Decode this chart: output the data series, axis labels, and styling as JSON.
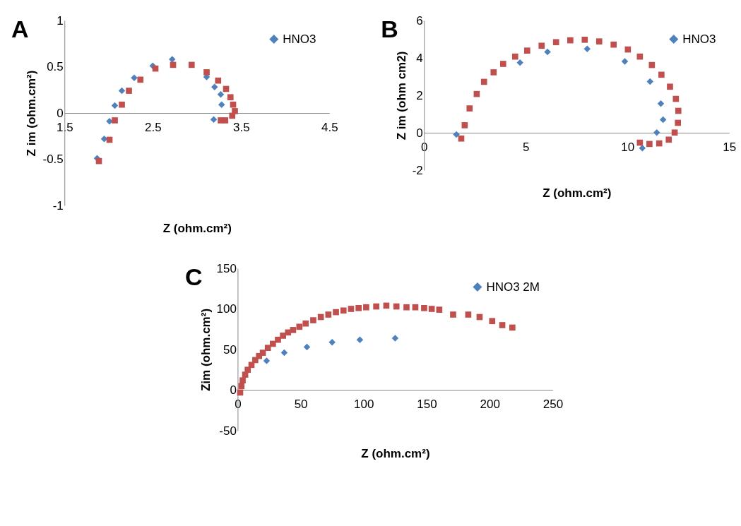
{
  "chart_data": [
    {
      "type": "scatter",
      "title": "A",
      "xlabel": "Z (ohm.cm²)",
      "ylabel": "Z im (ohm.cm²)",
      "xlim": [
        1.5,
        4.5
      ],
      "xticks": [
        1.5,
        2.5,
        3.5,
        4.5
      ],
      "ylim": [
        -1,
        1
      ],
      "yticks": [
        -1,
        -0.5,
        0,
        0.5,
        1
      ],
      "legend": "top right",
      "series": [
        {
          "name": "HNO3",
          "color": "#4f81bd",
          "marker": "diamond",
          "x": [
            1.87,
            1.95,
            2.01,
            2.07,
            2.15,
            2.29,
            2.5,
            2.72,
            3.11,
            3.2,
            3.27,
            3.28,
            3.19
          ],
          "values": [
            -0.49,
            -0.28,
            -0.09,
            0.08,
            0.24,
            0.38,
            0.51,
            0.58,
            0.39,
            0.28,
            0.2,
            0.09,
            -0.07
          ]
        },
        {
          "color": "#c0504d",
          "marker": "square",
          "x": [
            1.89,
            2.01,
            2.07,
            2.15,
            2.23,
            2.36,
            2.53,
            2.73,
            2.94,
            3.11,
            3.24,
            3.33,
            3.38,
            3.41,
            3.43,
            3.4,
            3.32,
            3.27
          ],
          "values": [
            -0.52,
            -0.29,
            -0.08,
            0.09,
            0.24,
            0.36,
            0.48,
            0.52,
            0.52,
            0.44,
            0.35,
            0.26,
            0.17,
            0.09,
            0.02,
            -0.03,
            -0.08,
            -0.08
          ]
        }
      ]
    },
    {
      "type": "scatter",
      "title": "B",
      "xlabel": "Z (ohm.cm²)",
      "ylabel": "Z im (ohm cm2)",
      "xlim": [
        0,
        15
      ],
      "xticks": [
        0,
        5,
        10,
        15
      ],
      "ylim": [
        -2,
        6
      ],
      "yticks": [
        -2,
        0,
        2,
        4,
        6
      ],
      "legend": "top right",
      "series": [
        {
          "name": "HNO3",
          "color": "#4f81bd",
          "marker": "diamond",
          "x": [
            1.59,
            4.72,
            6.07,
            8.02,
            9.87,
            11.11,
            11.64,
            11.75,
            11.44,
            10.73
          ],
          "values": [
            -0.09,
            3.75,
            4.32,
            4.48,
            3.81,
            2.74,
            1.56,
            0.7,
            0.01,
            -0.82
          ]
        },
        {
          "color": "#c0504d",
          "marker": "square",
          "x": [
            1.83,
            2.0,
            2.24,
            2.59,
            2.95,
            3.42,
            3.89,
            4.48,
            5.07,
            5.78,
            6.49,
            7.19,
            7.9,
            8.61,
            9.32,
            10.02,
            10.61,
            11.2,
            11.67,
            12.09,
            12.38,
            12.5,
            12.48,
            12.32,
            12.03,
            11.56,
            11.08,
            10.61
          ],
          "values": [
            -0.31,
            0.4,
            1.3,
            2.07,
            2.72,
            3.23,
            3.68,
            4.07,
            4.39,
            4.65,
            4.84,
            4.94,
            4.97,
            4.88,
            4.71,
            4.45,
            4.07,
            3.62,
            3.1,
            2.46,
            1.81,
            1.17,
            0.53,
            0.01,
            -0.37,
            -0.57,
            -0.6,
            -0.53
          ]
        }
      ]
    },
    {
      "type": "scatter",
      "title": "C",
      "xlabel": "Z (ohm.cm²)",
      "ylabel": "Zim (ohm.cm²)",
      "xlim": [
        0,
        250
      ],
      "xticks": [
        0,
        50,
        100,
        150,
        200,
        250
      ],
      "ylim": [
        -50,
        150
      ],
      "yticks": [
        -50,
        0,
        50,
        100,
        150
      ],
      "legend": "top right",
      "series": [
        {
          "name": "HNO3 2M",
          "color": "#4f81bd",
          "marker": "diamond",
          "x": [
            23,
            37,
            55,
            75,
            97,
            125
          ],
          "values": [
            36,
            46,
            53,
            59,
            62,
            64
          ]
        },
        {
          "color": "#c0504d",
          "marker": "square",
          "x": [
            2,
            3,
            4,
            6,
            8,
            11,
            14,
            17,
            20,
            24,
            28,
            32,
            36,
            40,
            44,
            49,
            54,
            60,
            66,
            72,
            78,
            84,
            90,
            96,
            102,
            110,
            118,
            126,
            134,
            141,
            148,
            154,
            160,
            171,
            183,
            192,
            202,
            210,
            218
          ],
          "values": [
            -3,
            5,
            12,
            19,
            25,
            31,
            37,
            42,
            46,
            52,
            57,
            62,
            67,
            71,
            74,
            78,
            82,
            86,
            90,
            93,
            96,
            98,
            100,
            101,
            102,
            103,
            104,
            103,
            102,
            102,
            101,
            100,
            99,
            93,
            93,
            90,
            85,
            80,
            77
          ]
        }
      ]
    }
  ]
}
